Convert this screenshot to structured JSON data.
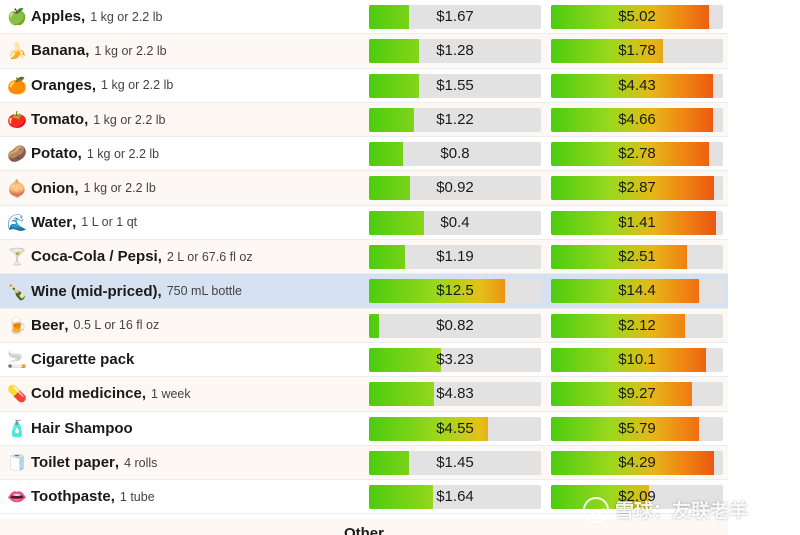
{
  "rows": [
    {
      "icon": "🍏",
      "icon_name": "green-apple-icon",
      "name": "Apples",
      "sep": ",",
      "qty": "1 kg or 2.2 lb",
      "price1": "$1.67",
      "fill1": 0.23,
      "price2": "$5.02",
      "fill2": 0.92
    },
    {
      "icon": "🍌",
      "icon_name": "banana-icon",
      "name": "Banana",
      "sep": ",",
      "qty": "1 kg or 2.2 lb",
      "price1": "$1.28",
      "fill1": 0.29,
      "price2": "$1.78",
      "fill2": 0.65
    },
    {
      "icon": "🍊",
      "icon_name": "orange-icon",
      "name": "Oranges",
      "sep": ",",
      "qty": "1 kg or 2.2 lb",
      "price1": "$1.55",
      "fill1": 0.29,
      "price2": "$4.43",
      "fill2": 0.94
    },
    {
      "icon": "🍅",
      "icon_name": "tomato-icon",
      "name": "Tomato",
      "sep": ",",
      "qty": "1 kg or 2.2 lb",
      "price1": "$1.22",
      "fill1": 0.26,
      "price2": "$4.66",
      "fill2": 0.94
    },
    {
      "icon": "🥔",
      "icon_name": "potato-icon",
      "name": "Potato",
      "sep": ",",
      "qty": "1 kg or 2.2 lb",
      "price1": "$0.8",
      "fill1": 0.2,
      "price2": "$2.78",
      "fill2": 0.92
    },
    {
      "icon": "🧅",
      "icon_name": "onion-icon",
      "name": "Onion",
      "sep": ",",
      "qty": "1 kg or 2.2 lb",
      "price1": "$0.92",
      "fill1": 0.24,
      "price2": "$2.87",
      "fill2": 0.95
    },
    {
      "icon": "🌊",
      "icon_name": "water-wave-icon",
      "name": "Water",
      "sep": ",",
      "qty": "1 L or 1 qt",
      "price1": "$0.4",
      "fill1": 0.32,
      "price2": "$1.41",
      "fill2": 0.96
    },
    {
      "icon": "🍸",
      "icon_name": "cocktail-glass-icon",
      "name": "Coca-Cola / Pepsi",
      "sep": ",",
      "qty": "2 L or 67.6 fl oz",
      "price1": "$1.19",
      "fill1": 0.21,
      "price2": "$2.51",
      "fill2": 0.79
    },
    {
      "icon": "🍾",
      "icon_name": "wine-bottle-icon",
      "name": "Wine (mid-priced)",
      "sep": ",",
      "qty": "750 mL bottle",
      "price1": "$12.5",
      "fill1": 0.79,
      "price2": "$14.4",
      "fill2": 0.86,
      "highlight": true
    },
    {
      "icon": "🍺",
      "icon_name": "beer-mug-icon",
      "name": "Beer",
      "sep": ",",
      "qty": "0.5 L or 16 fl oz",
      "price1": "$0.82",
      "fill1": 0.06,
      "price2": "$2.12",
      "fill2": 0.78
    },
    {
      "icon": "🚬",
      "icon_name": "cigarette-icon",
      "name": "Cigarette pack",
      "sep": "",
      "qty": "",
      "price1": "$3.23",
      "fill1": 0.42,
      "price2": "$10.1",
      "fill2": 0.9
    },
    {
      "icon": "💊",
      "icon_name": "pill-icon",
      "name": "Cold medicince",
      "sep": ",",
      "qty": "1 week",
      "price1": "$4.83",
      "fill1": 0.38,
      "price2": "$9.27",
      "fill2": 0.82
    },
    {
      "icon": "🧴",
      "icon_name": "lotion-bottle-icon",
      "name": "Hair Shampoo",
      "sep": "",
      "qty": "",
      "price1": "$4.55",
      "fill1": 0.69,
      "price2": "$5.79",
      "fill2": 0.86
    },
    {
      "icon": "🧻",
      "icon_name": "toilet-paper-icon",
      "name": "Toilet paper",
      "sep": ",",
      "qty": "4 rolls",
      "price1": "$1.45",
      "fill1": 0.23,
      "price2": "$4.29",
      "fill2": 0.95
    },
    {
      "icon": "👄",
      "icon_name": "mouth-icon",
      "name": "Toothpaste",
      "sep": ",",
      "qty": "1 tube",
      "price1": "$1.64",
      "fill1": 0.37,
      "price2": "$2.09",
      "fill2": 0.57
    }
  ],
  "other_heading": "Other",
  "watermark": "雪球：友联老羊"
}
